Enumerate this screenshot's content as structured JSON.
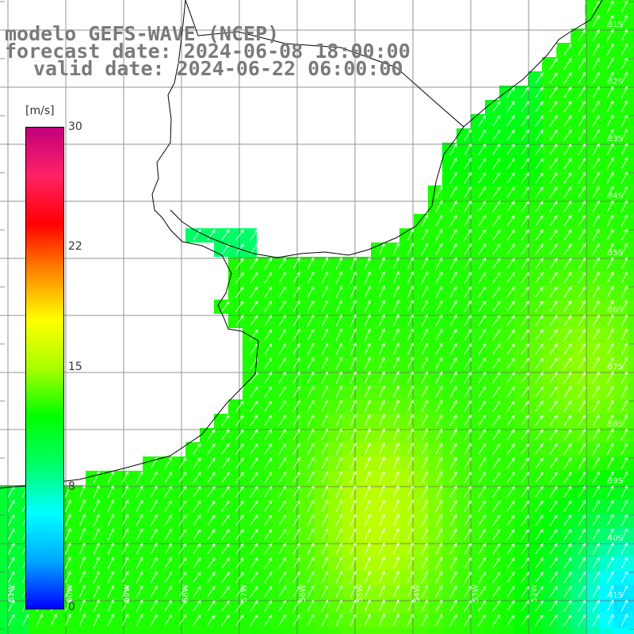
{
  "title": {
    "line1": "modelo GEFS-WAVE (NCEP)",
    "line2": "forecast date: 2024-06-08 18:00:00",
    "line3": "valid date: 2024-06-22 06:00:00"
  },
  "colorbar": {
    "unit": "[m/s]",
    "min": 0,
    "max": 30,
    "ticks": [
      "30",
      "22",
      "15",
      "8",
      "0"
    ],
    "tick_values": [
      30,
      22,
      15,
      8,
      0
    ],
    "colors": [
      "#0000ff",
      "#00aaff",
      "#00ffff",
      "#00ff66",
      "#00ff00",
      "#aaff00",
      "#ffff00",
      "#ff8800",
      "#ff0000",
      "#ff2266",
      "#c0007a"
    ]
  },
  "map": {
    "variable": "wind speed",
    "lat_labels": [
      "31S",
      "32S",
      "33S",
      "34S",
      "35S",
      "36S",
      "37S",
      "38S",
      "39S",
      "40S",
      "41S"
    ],
    "lon_labels": [
      "61W",
      "60W",
      "59W",
      "58W",
      "57W",
      "56W",
      "55W",
      "54W",
      "53W",
      "52W"
    ],
    "land_color": "#ffffff",
    "coast_color": "#000000",
    "grid_color": "#666666",
    "arrow_color": "#ffffff"
  }
}
